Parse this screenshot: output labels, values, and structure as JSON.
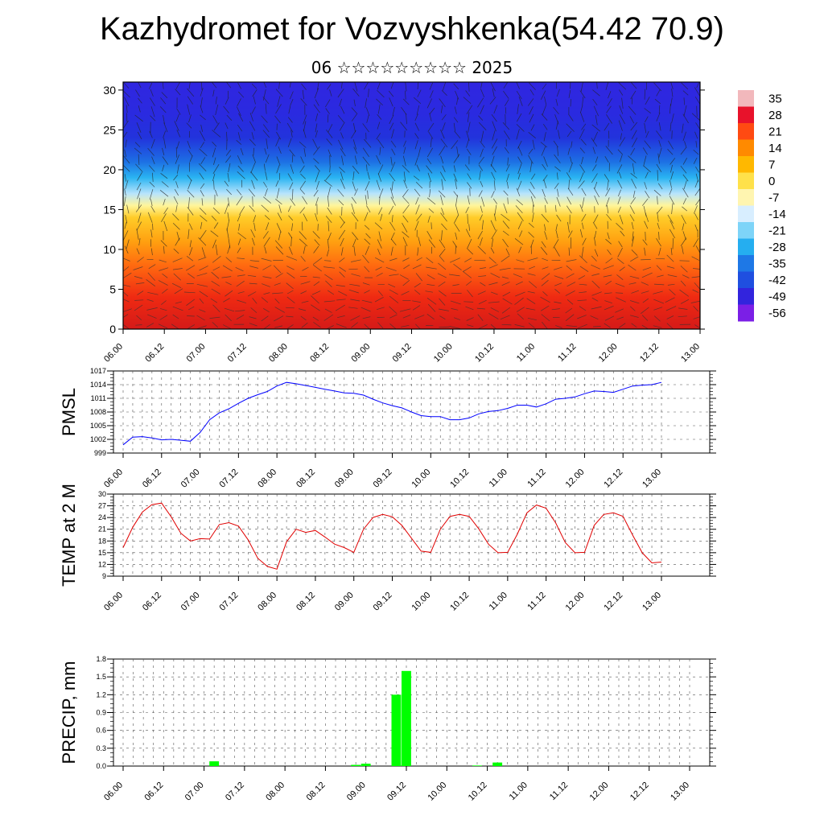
{
  "header": {
    "title": "Kazhydromet for Vozvyshkenka(54.42 70.9)",
    "subtitle": "06 ☆☆☆☆☆☆☆☆☆ 2025"
  },
  "chart_data": [
    {
      "type": "heatmap",
      "title": "",
      "variable": "temperature cross-section with wind barbs",
      "ylim": [
        0,
        31
      ],
      "yticks": [
        0,
        5,
        10,
        15,
        20,
        25,
        30
      ],
      "x_labels": [
        "06.00",
        "06.12",
        "07.00",
        "07.12",
        "08.00",
        "08.12",
        "09.00",
        "09.12",
        "10.00",
        "10.12",
        "11.00",
        "11.12",
        "12.00",
        "12.12",
        "13.00"
      ],
      "colorbar": {
        "labels": [
          "35",
          "28",
          "21",
          "14",
          "7",
          "0",
          "-7",
          "-14",
          "-21",
          "-28",
          "-35",
          "-42",
          "-49",
          "-56"
        ],
        "colors": [
          "#f2b8bc",
          "#e8122b",
          "#ff4a12",
          "#ff8a00",
          "#ffb800",
          "#ffe14a",
          "#fff5b0",
          "#d8eeff",
          "#7ed4f8",
          "#25aef0",
          "#1e78e6",
          "#1f4fe0",
          "#3224dd",
          "#7b1fe6"
        ]
      },
      "levels": [
        {
          "alt": 0,
          "color": "#d51a18"
        },
        {
          "alt": 4,
          "color": "#ef2a12"
        },
        {
          "alt": 8,
          "color": "#ff6a10"
        },
        {
          "alt": 11,
          "color": "#ffa010"
        },
        {
          "alt": 14,
          "color": "#ffcc28"
        },
        {
          "alt": 15.5,
          "color": "#fff59a"
        },
        {
          "alt": 17,
          "color": "#b8e4fc"
        },
        {
          "alt": 19,
          "color": "#2ab4f2"
        },
        {
          "alt": 21,
          "color": "#1d70e4"
        },
        {
          "alt": 24,
          "color": "#2233dc"
        },
        {
          "alt": 27,
          "color": "#2a2ae0"
        },
        {
          "alt": 31,
          "color": "#3026e0"
        }
      ]
    },
    {
      "type": "line",
      "ylabel": "PMSL",
      "ylim": [
        999,
        1017
      ],
      "yticks": [
        999,
        1002,
        1005,
        1008,
        1011,
        1014,
        1017
      ],
      "x_labels": [
        "06.00",
        "06.12",
        "07.00",
        "07.12",
        "08.00",
        "08.12",
        "09.00",
        "09.12",
        "10.00",
        "10.12",
        "11.00",
        "11.12",
        "12.00",
        "12.12",
        "13.00"
      ],
      "color": "#0000ff",
      "x": [
        0,
        0.25,
        0.5,
        0.75,
        1,
        1.25,
        1.5,
        1.75,
        2,
        2.25,
        2.5,
        2.75,
        3,
        3.25,
        3.5,
        3.75,
        4,
        4.25,
        4.5,
        4.75,
        5,
        5.25,
        5.5,
        5.75,
        6,
        6.25,
        6.5,
        6.75,
        7,
        7.25,
        7.5,
        7.75,
        8,
        8.25,
        8.5,
        8.75,
        9,
        9.25,
        9.5,
        9.75,
        10,
        10.25,
        10.5,
        10.75,
        11,
        11.25,
        11.5,
        11.75,
        12,
        12.25,
        12.5,
        12.75,
        13,
        13.25,
        13.5,
        13.75,
        14
      ],
      "values": [
        1000.8,
        1002.5,
        1002.6,
        1002.3,
        1001.9,
        1002.0,
        1001.8,
        1001.6,
        1003.5,
        1006.3,
        1007.8,
        1008.7,
        1009.9,
        1011.0,
        1011.8,
        1012.5,
        1013.7,
        1014.5,
        1014.2,
        1013.8,
        1013.4,
        1013.0,
        1012.6,
        1012.2,
        1012.1,
        1011.7,
        1010.8,
        1010.0,
        1009.4,
        1008.9,
        1008.0,
        1007.2,
        1007.0,
        1007.0,
        1006.3,
        1006.3,
        1006.7,
        1007.6,
        1008.1,
        1008.3,
        1008.8,
        1009.5,
        1009.5,
        1009.1,
        1009.8,
        1010.8,
        1011.0,
        1011.3,
        1012.0,
        1012.6,
        1012.5,
        1012.3,
        1013.0,
        1013.7,
        1013.9,
        1014.0,
        1014.5
      ]
    },
    {
      "type": "line",
      "ylabel": "TEMP at 2 M",
      "ylim": [
        9,
        30
      ],
      "yticks": [
        9,
        12,
        15,
        18,
        21,
        24,
        27,
        30
      ],
      "x_labels": [
        "06.00",
        "06.12",
        "07.00",
        "07.12",
        "08.00",
        "08.12",
        "09.00",
        "09.12",
        "10.00",
        "10.12",
        "11.00",
        "11.12",
        "12.00",
        "12.12",
        "13.00"
      ],
      "color": "#e00000",
      "x": [
        0,
        0.25,
        0.5,
        0.75,
        1,
        1.25,
        1.5,
        1.75,
        2,
        2.25,
        2.5,
        2.75,
        3,
        3.25,
        3.5,
        3.75,
        4,
        4.25,
        4.5,
        4.75,
        5,
        5.25,
        5.5,
        5.75,
        6,
        6.25,
        6.5,
        6.75,
        7,
        7.25,
        7.5,
        7.75,
        8,
        8.25,
        8.5,
        8.75,
        9,
        9.25,
        9.5,
        9.75,
        10,
        10.25,
        10.5,
        10.75,
        11,
        11.25,
        11.5,
        11.75,
        12,
        12.25,
        12.5,
        12.75,
        13,
        13.25,
        13.5,
        13.75,
        14
      ],
      "values": [
        16.3,
        21.5,
        25.4,
        27.3,
        27.7,
        24.2,
        20.0,
        18.0,
        18.6,
        18.5,
        22.2,
        22.7,
        21.8,
        18.3,
        13.6,
        11.5,
        10.8,
        17.8,
        21.0,
        20.2,
        20.7,
        19.0,
        17.2,
        16.3,
        15.1,
        21.0,
        24.0,
        24.8,
        24.2,
        22.0,
        18.7,
        15.4,
        15.1,
        21.0,
        24.3,
        24.8,
        24.3,
        21.1,
        17.2,
        15.0,
        15.1,
        19.7,
        25.2,
        27.2,
        26.4,
        22.6,
        17.6,
        15.0,
        15.1,
        22.0,
        24.8,
        25.2,
        24.3,
        19.5,
        15.0,
        12.4,
        12.6
      ]
    },
    {
      "type": "bar",
      "ylabel": "PRECIP, mm",
      "ylim": [
        0.0,
        1.8
      ],
      "yticks": [
        "0.0",
        "0.3",
        "0.6",
        "0.9",
        "1.2",
        "1.5",
        "1.8"
      ],
      "x_labels": [
        "06.00",
        "06.12",
        "07.00",
        "07.12",
        "08.00",
        "08.12",
        "09.00",
        "09.12",
        "10.00",
        "10.12",
        "11.00",
        "11.12",
        "12.00",
        "12.12",
        "13.00"
      ],
      "color": "#00ff00",
      "x": [
        2.25,
        5.75,
        6.0,
        6.75,
        7.0,
        8.75,
        9.25
      ],
      "values": [
        0.08,
        0.02,
        0.04,
        1.2,
        1.6,
        0.01,
        0.06
      ]
    }
  ]
}
